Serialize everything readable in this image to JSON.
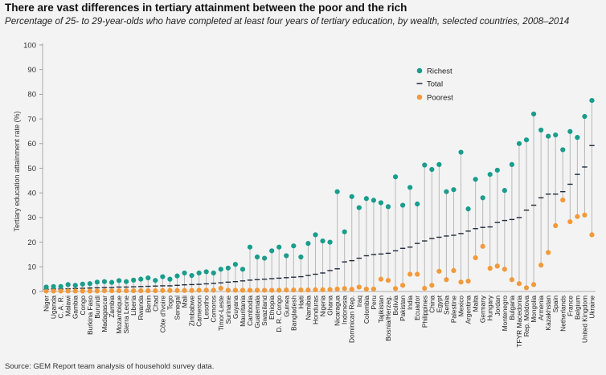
{
  "chart_data": {
    "type": "scatter",
    "title": "There are vast differences in tertiary attainment between the poor and the rich",
    "subtitle": "Percentage of 25- to 29-year-olds who have completed at least four years of tertiary education, by wealth, selected countries, 2008–2014",
    "ylabel": "Tertiary education attainment rate (%)",
    "ylim": [
      0,
      100
    ],
    "yticks": [
      0,
      10,
      20,
      30,
      40,
      50,
      60,
      70,
      80,
      90,
      100
    ],
    "grid": false,
    "legend_position": "top-right",
    "colors": {
      "richest": "#199d8c",
      "total": "#1f2a3a",
      "poorest": "#f29a3a",
      "connector": "#b8b8b8"
    },
    "categories": [
      "Niger",
      "Uganda",
      "C. A. R.",
      "Malawi",
      "Gambia",
      "Congo",
      "Burkina Faso",
      "Burundi",
      "Madagascar",
      "Zambia",
      "Mozambique",
      "Sierra Leone",
      "Liberia",
      "Rwanda",
      "Benin",
      "Chad",
      "Côte d'Ivoire",
      "Togo",
      "Senegal",
      "Mali",
      "Zimbabwe",
      "Cameroon",
      "Lesotho",
      "Comoros",
      "Timor-Leste",
      "Suriname",
      "Guyana",
      "Mauritania",
      "Cambodia",
      "Guatemala",
      "Swaziland",
      "Ethiopia",
      "D. R. Congo",
      "Guinea",
      "Bangladesh",
      "Haiti",
      "Namibia",
      "Honduras",
      "Nigeria",
      "Ghana",
      "Nicaragua",
      "Indonesia",
      "Dominican Rep.",
      "Iraq",
      "Colombia",
      "Peru",
      "Tajikistan",
      "Bosnia/Herzeg.",
      "Bolivia",
      "Pakistan",
      "India",
      "Ecuador",
      "Philippines",
      "China",
      "Egypt",
      "Serbia",
      "Palestine",
      "Mexico",
      "Argentina",
      "Malta",
      "Germany",
      "Hungary",
      "Jordan",
      "Montenegro",
      "Bulgaria",
      "TFYR Macedonia",
      "Rep. Moldova",
      "Mongolia",
      "Armenia",
      "Kazakhstan",
      "Spain",
      "Netherlands",
      "France",
      "Belgium",
      "United Kingdom",
      "Ukraine"
    ],
    "series": [
      {
        "name": "Richest",
        "marker": "dot",
        "values": [
          1.8,
          2,
          2,
          2.8,
          2.5,
          3,
          3.2,
          3.8,
          4,
          3.7,
          4.4,
          4,
          4.6,
          5,
          5.5,
          4.5,
          6,
          5,
          6.3,
          7.5,
          6.5,
          7.5,
          8,
          7.5,
          9,
          9.5,
          11,
          9,
          18,
          14,
          13.5,
          16.5,
          18,
          14.5,
          18.5,
          14,
          19.5,
          23,
          20.5,
          20,
          40.5,
          24.2,
          38.5,
          34,
          37.7,
          37,
          36,
          34.4,
          46.5,
          35,
          42.2,
          35.5,
          51.3,
          49.5,
          51.5,
          40.5,
          41.3,
          56.5,
          33.5,
          45.5,
          38,
          47.5,
          49.2,
          41,
          51.5,
          60,
          61.5,
          72,
          65.5,
          63,
          63.5,
          57.5,
          64.9,
          62.5,
          71,
          77.5
        ]
      },
      {
        "name": "Total",
        "marker": "dash",
        "values": [
          0.9,
          1,
          1,
          1.1,
          1.2,
          1.3,
          1.4,
          1.5,
          1.6,
          1.6,
          1.8,
          1.8,
          1.9,
          2,
          2.1,
          2.2,
          2.3,
          2.3,
          2.5,
          2.7,
          2.8,
          2.9,
          3.1,
          3.3,
          3.5,
          3.8,
          4,
          4.3,
          4.6,
          4.8,
          5,
          5.2,
          5.4,
          5.6,
          5.8,
          6,
          6.5,
          7,
          7.5,
          8.5,
          9.2,
          12,
          12.5,
          13.5,
          14.5,
          15,
          15.2,
          15.5,
          16.5,
          17.5,
          18,
          19.5,
          20.5,
          21.5,
          22,
          22.5,
          22.8,
          23.5,
          24.5,
          25.5,
          26,
          26.2,
          28,
          28.8,
          29.2,
          30,
          33,
          35,
          38,
          39.5,
          39.5,
          40.5,
          43.5,
          47.5,
          50.5,
          59.2
        ]
      },
      {
        "name": "Poorest",
        "marker": "dot",
        "values": [
          0.2,
          0.2,
          0.2,
          0.2,
          0.2,
          0.2,
          0.2,
          0.2,
          0.3,
          0.3,
          0.3,
          0.3,
          0.3,
          0.3,
          0.3,
          0.3,
          0.4,
          0.4,
          0.4,
          0.4,
          0.4,
          0.5,
          0.5,
          0.5,
          1.3,
          0.5,
          0.5,
          0.5,
          0.5,
          0.5,
          0.5,
          0.5,
          0.5,
          0.6,
          0.6,
          0.6,
          0.6,
          0.7,
          0.7,
          0.8,
          1,
          1.2,
          0.9,
          1.8,
          1,
          1,
          5,
          4.5,
          1.2,
          2.5,
          7,
          7,
          1.3,
          2.5,
          8.2,
          4.8,
          8.5,
          3.8,
          4.2,
          13.7,
          18.3,
          9.4,
          10.3,
          9,
          4.8,
          3.2,
          1.5,
          2.8,
          10.7,
          15.8,
          26.7,
          37.1,
          28.3,
          30.4,
          31,
          23
        ]
      }
    ]
  },
  "source_text": "Source: GEM Report team analysis of household survey data."
}
